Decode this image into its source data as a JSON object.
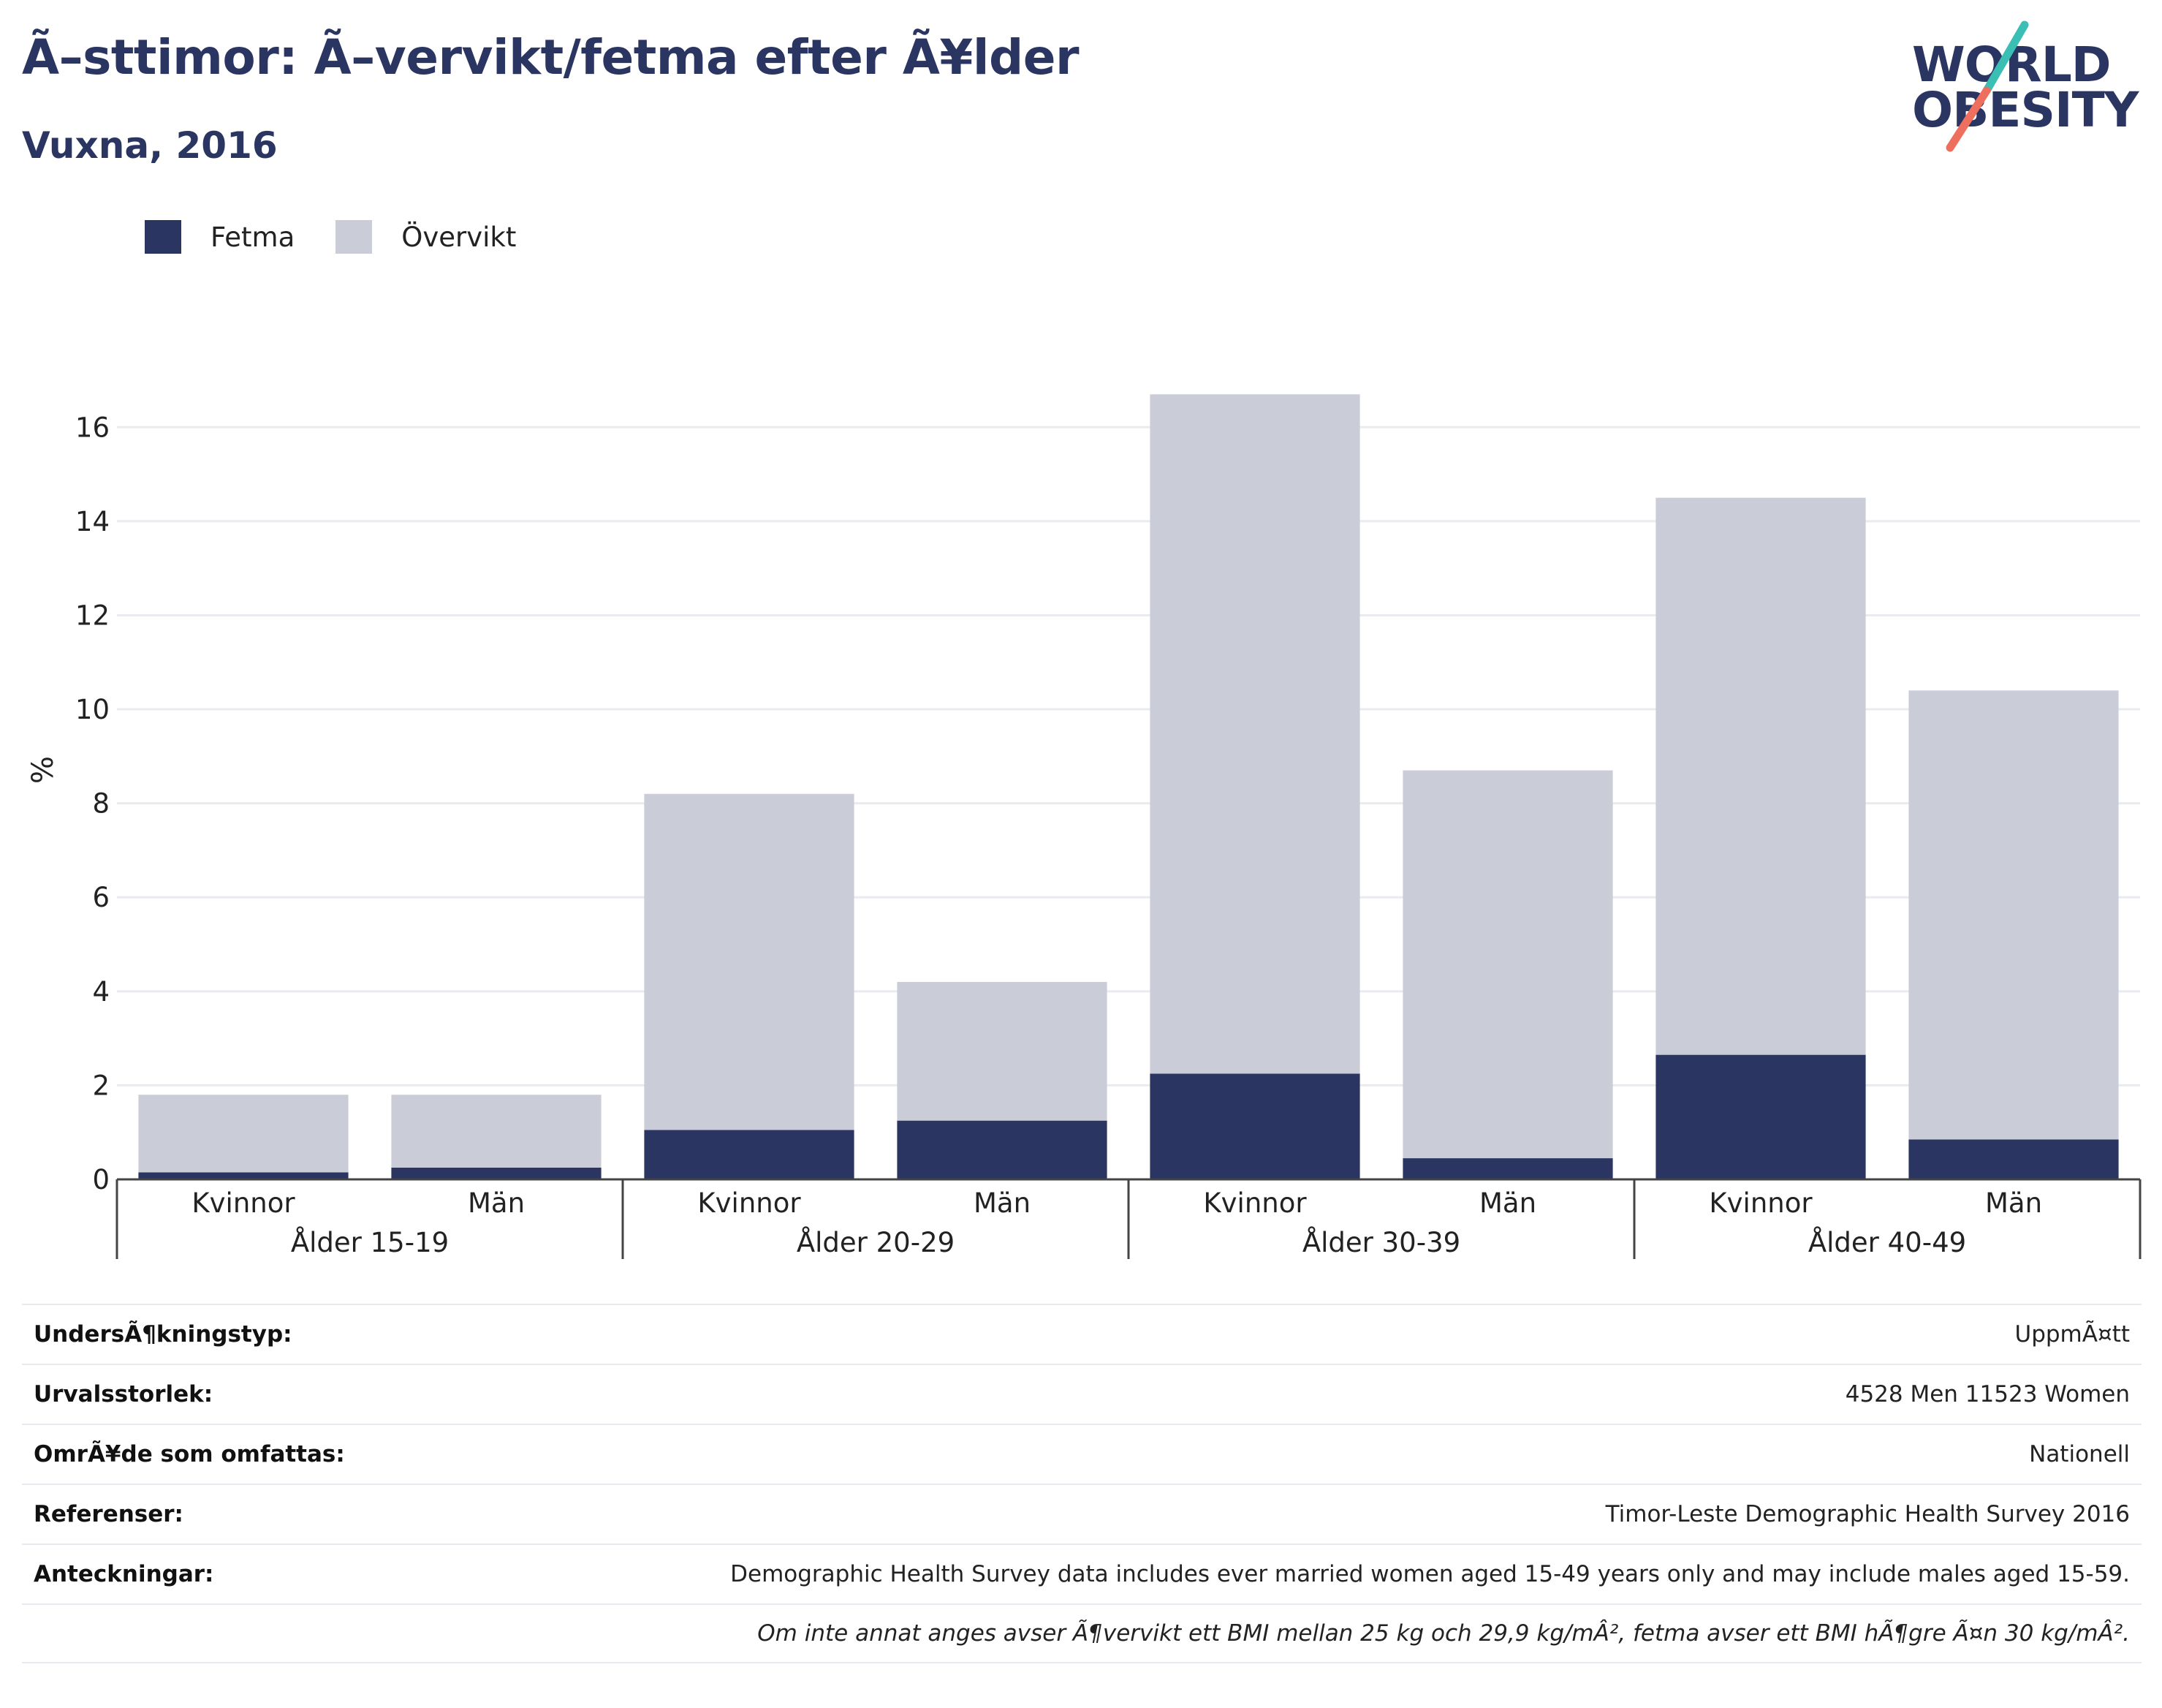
{
  "header": {
    "title": "Ã–sttimor: Ã–vervikt/fetma efter Ã¥lder",
    "subtitle": "Vuxna, 2016"
  },
  "logo": {
    "line1": "WORLD",
    "line2": "OBESITY",
    "colors": {
      "text": "#2b3562",
      "slash_top": "#3bbfb5",
      "slash_bottom": "#ef6f5e"
    }
  },
  "legend": [
    {
      "label": "Fetma",
      "color": "#2b3562"
    },
    {
      "label": "Övervikt",
      "color": "#cacdd8"
    }
  ],
  "chart_data": {
    "type": "bar",
    "stacked": true,
    "ylabel": "%",
    "ylim": [
      0,
      17
    ],
    "yticks": [
      0,
      2,
      4,
      6,
      8,
      10,
      12,
      14,
      16
    ],
    "grid": true,
    "legend_position": "top-left",
    "groups": [
      "Ålder 15-19",
      "Ålder 20-29",
      "Ålder 30-39",
      "Ålder 40-49"
    ],
    "categories": [
      "Kvinnor",
      "Män",
      "Kvinnor",
      "Män",
      "Kvinnor",
      "Män",
      "Kvinnor",
      "Män"
    ],
    "series": [
      {
        "name": "Fetma",
        "color": "#2b3562",
        "values": [
          0.15,
          0.25,
          1.05,
          1.25,
          2.25,
          0.45,
          2.65,
          0.85
        ]
      },
      {
        "name": "Övervikt",
        "color": "#cacdd8",
        "values": [
          1.65,
          1.55,
          7.15,
          2.95,
          14.45,
          8.25,
          11.85,
          9.55
        ]
      }
    ]
  },
  "info_table": [
    {
      "label": "UndersÃ¶kningstyp:",
      "value": "UppmÃ¤tt"
    },
    {
      "label": "Urvalsstorlek:",
      "value": "4528 Men 11523 Women"
    },
    {
      "label": "OmrÃ¥de som omfattas:",
      "value": "Nationell"
    },
    {
      "label": "Referenser:",
      "value": "Timor-Leste Demographic Health Survey 2016"
    },
    {
      "label": "Anteckningar:",
      "value": "Demographic Health Survey data includes ever married women aged 15-49 years only and may include males aged 15-59."
    }
  ],
  "footnote": "Om inte annat anges avser Ã¶vervikt ett BMI mellan 25 kg och 29,9 kg/mÂ², fetma avser ett BMI hÃ¶gre Ã¤n 30 kg/mÂ²."
}
